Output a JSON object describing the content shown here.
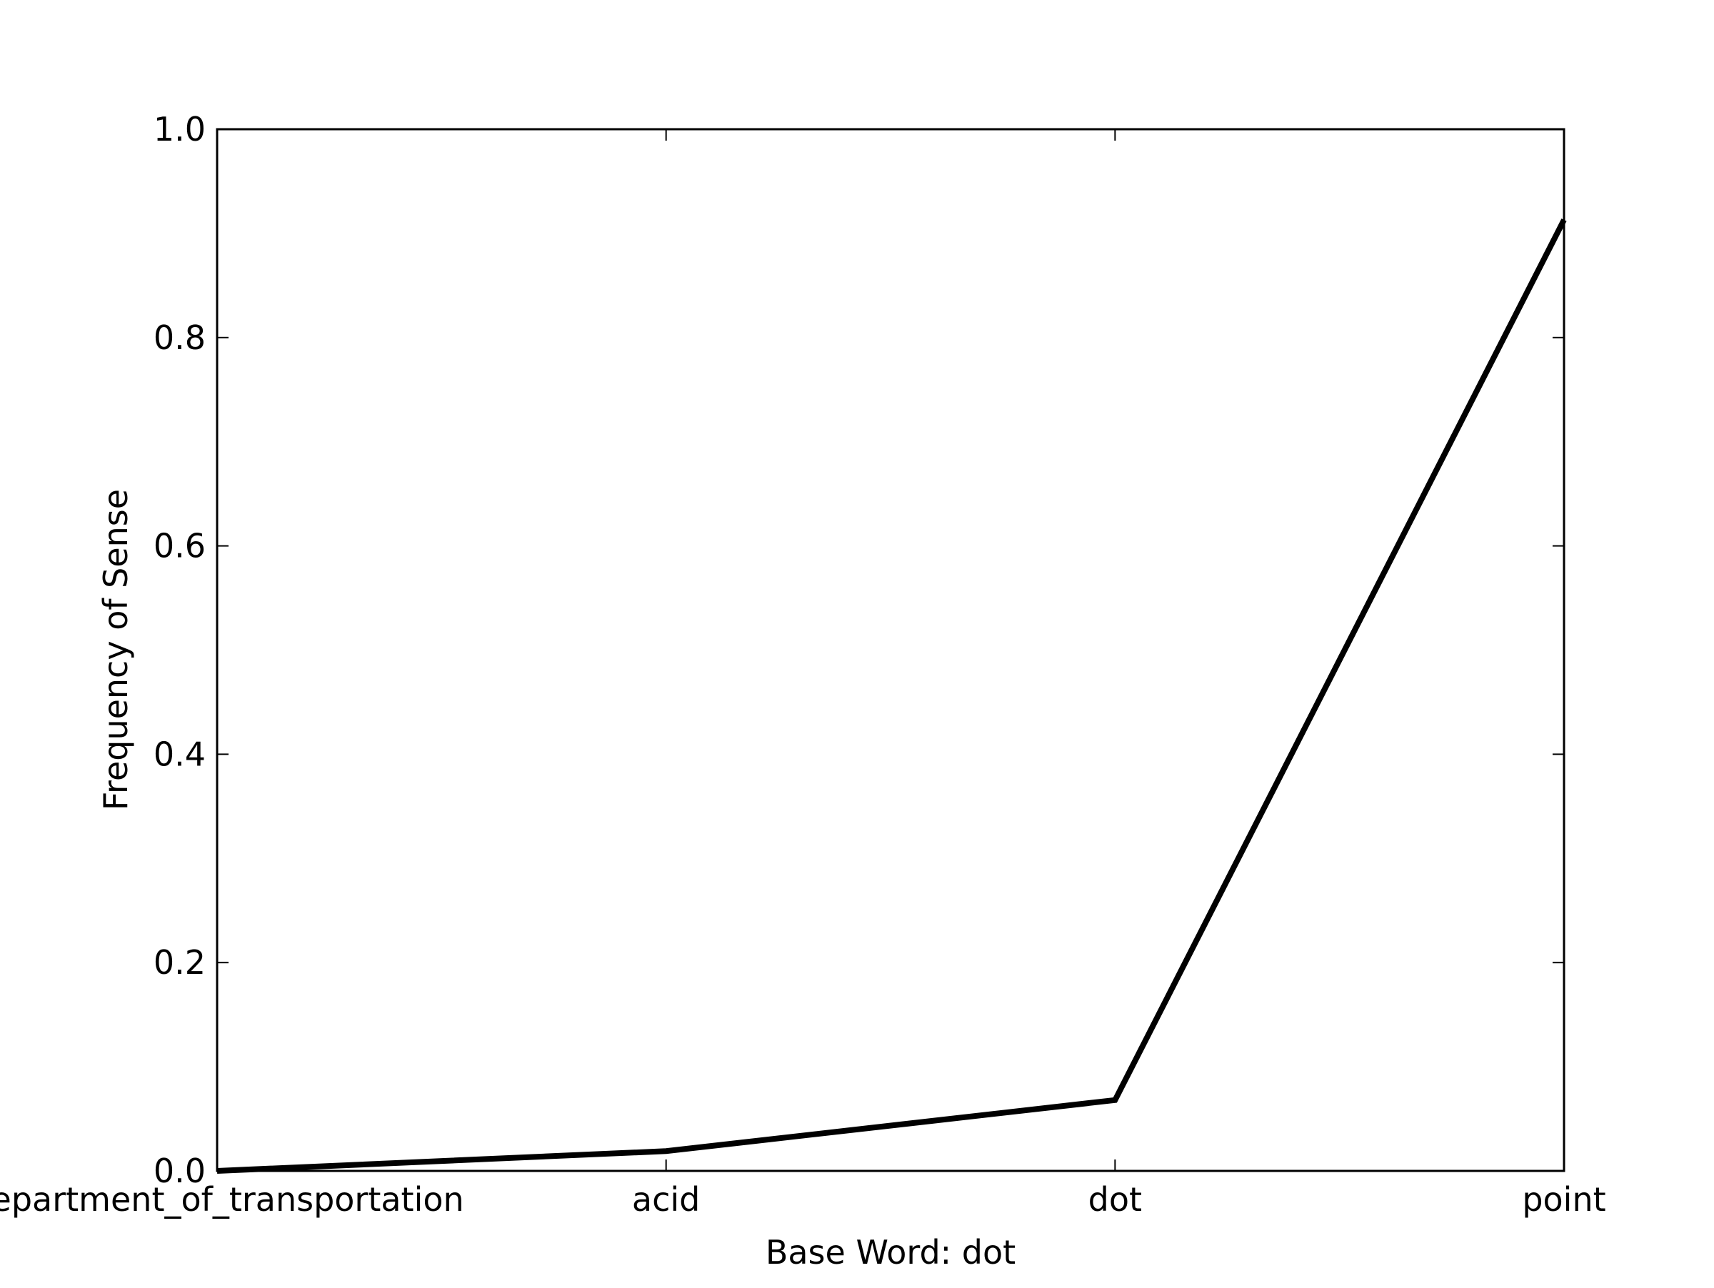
{
  "chart_data": {
    "type": "line",
    "title": "",
    "xlabel": "Base Word: dot",
    "ylabel": "Frequency of Sense",
    "categories": [
      "department_of_transportation",
      "acid",
      "dot",
      "point"
    ],
    "series": [
      {
        "values": [
          0.0,
          0.019,
          0.068,
          0.913
        ],
        "color": "#000000"
      }
    ],
    "ylim": [
      0.0,
      1.0
    ],
    "yticks": [
      "0.0",
      "0.2",
      "0.4",
      "0.6",
      "0.8",
      "1.0"
    ],
    "grid": false,
    "legend": "none"
  }
}
